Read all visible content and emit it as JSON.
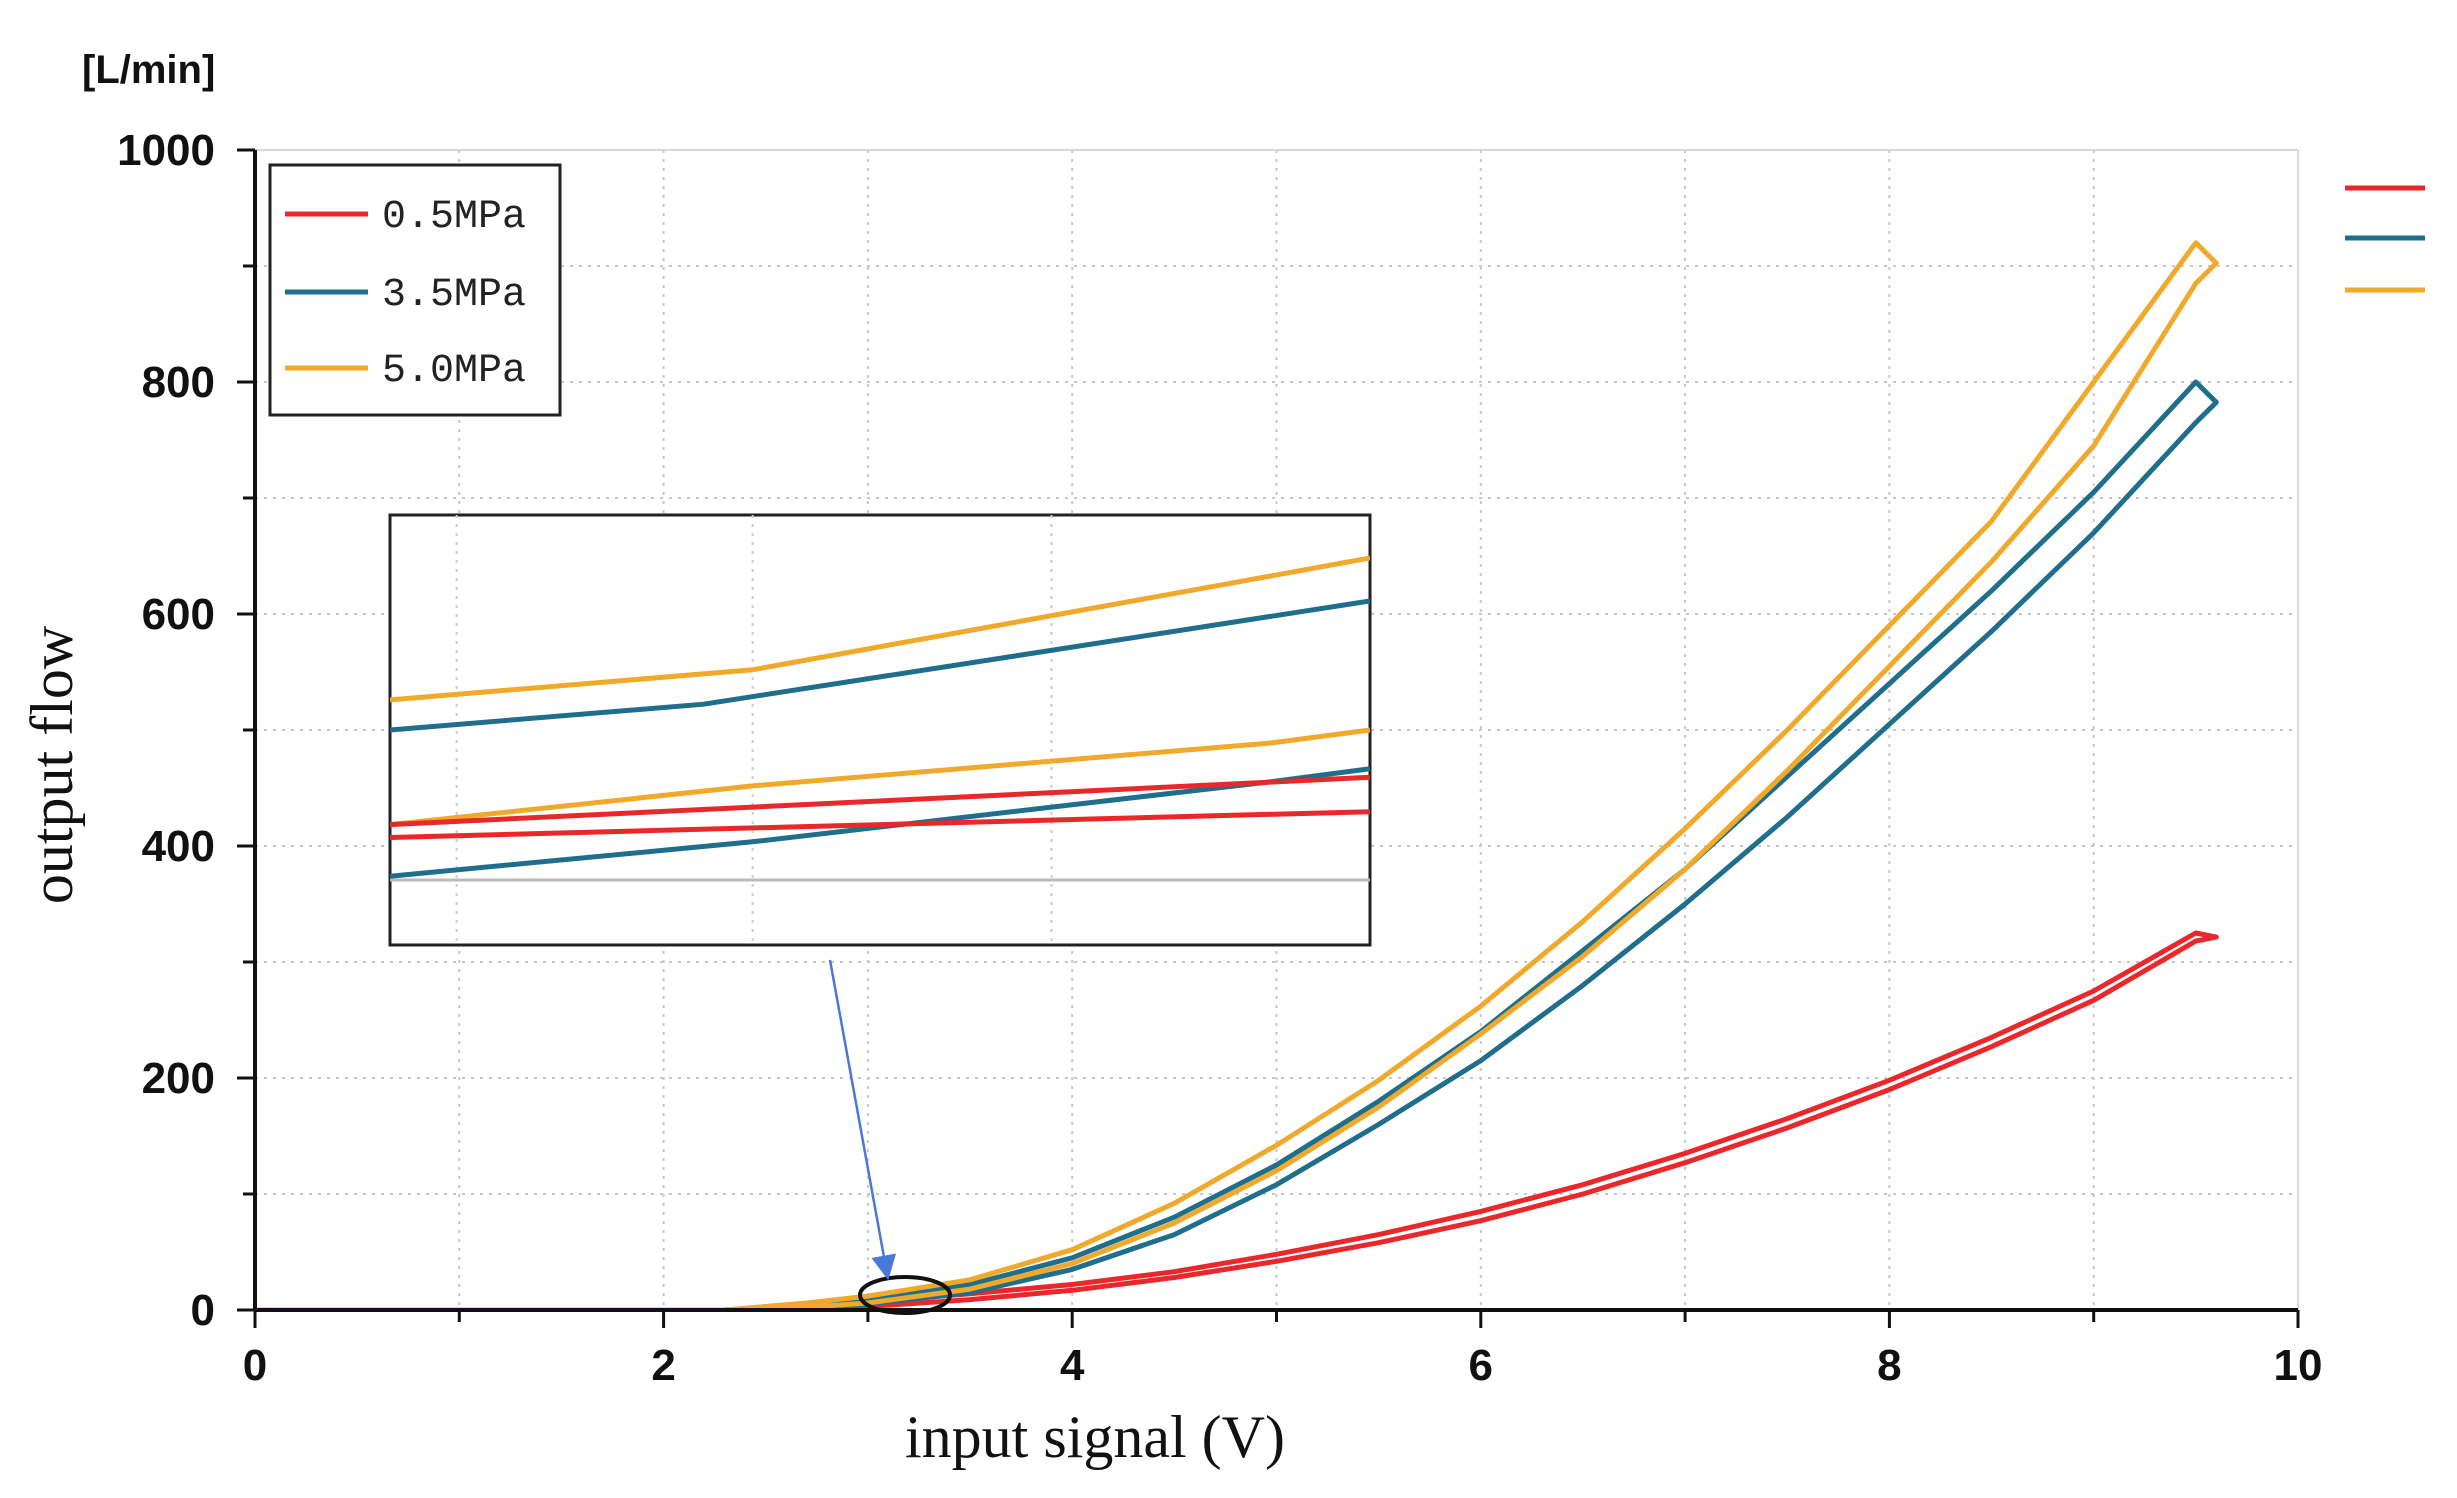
{
  "chart_data": {
    "type": "line",
    "title": "",
    "unit_label": "[L/min]",
    "xlabel": "input signal (V)",
    "ylabel": "output flow",
    "xlim": [
      0,
      10
    ],
    "ylim": [
      0,
      1000
    ],
    "xticks": [
      0,
      2,
      4,
      6,
      8,
      10
    ],
    "yticks": [
      0,
      200,
      400,
      600,
      800,
      1000
    ],
    "grid": true,
    "legend_position": "top-left",
    "series": [
      {
        "name": "0.5MPa",
        "color": "#e8282b",
        "upper": {
          "x": [
            0,
            2.3,
            2.7,
            3.0,
            3.5,
            4.0,
            4.5,
            5.0,
            5.5,
            6.0,
            6.5,
            7.0,
            7.5,
            8.0,
            8.5,
            9.0,
            9.5
          ],
          "y": [
            0,
            0,
            3,
            7,
            14,
            22,
            33,
            48,
            65,
            85,
            108,
            135,
            165,
            198,
            235,
            275,
            325
          ]
        },
        "lower": {
          "x": [
            0,
            2.5,
            3.0,
            3.5,
            4.0,
            4.5,
            5.0,
            5.5,
            6.0,
            6.5,
            7.0,
            7.5,
            8.0,
            8.5,
            9.0,
            9.5
          ],
          "y": [
            0,
            0,
            3,
            9,
            17,
            28,
            42,
            58,
            77,
            100,
            127,
            157,
            190,
            227,
            267,
            318
          ]
        }
      },
      {
        "name": "3.5MPa",
        "color": "#1f6e8c",
        "upper": {
          "x": [
            0,
            2.3,
            2.7,
            3.0,
            3.5,
            4.0,
            4.5,
            5.0,
            5.5,
            6.0,
            6.5,
            7.0,
            7.5,
            8.0,
            8.5,
            9.0,
            9.5
          ],
          "y": [
            0,
            0,
            5,
            10,
            22,
            45,
            80,
            125,
            180,
            240,
            310,
            380,
            460,
            540,
            620,
            705,
            800
          ]
        },
        "lower": {
          "x": [
            0,
            2.5,
            3.0,
            3.5,
            4.0,
            4.5,
            5.0,
            5.5,
            6.0,
            6.5,
            7.0,
            7.5,
            8.0,
            8.5,
            9.0,
            9.5
          ],
          "y": [
            0,
            0,
            5,
            15,
            35,
            65,
            108,
            160,
            215,
            280,
            350,
            425,
            505,
            585,
            670,
            765
          ]
        }
      },
      {
        "name": "5.0MPa",
        "color": "#f0a92a",
        "upper": {
          "x": [
            0,
            2.3,
            2.7,
            3.0,
            3.5,
            4.0,
            4.5,
            5.0,
            5.5,
            6.0,
            6.5,
            7.0,
            7.5,
            8.0,
            8.5,
            9.0,
            9.5
          ],
          "y": [
            0,
            0,
            6,
            12,
            26,
            52,
            92,
            142,
            198,
            262,
            335,
            415,
            500,
            590,
            680,
            800,
            920
          ]
        },
        "lower": {
          "x": [
            0,
            2.5,
            3.0,
            3.5,
            4.0,
            4.5,
            5.0,
            5.5,
            6.0,
            6.5,
            7.0,
            7.5,
            8.0,
            8.5,
            9.0,
            9.5
          ],
          "y": [
            0,
            0,
            6,
            18,
            40,
            75,
            120,
            175,
            238,
            305,
            380,
            465,
            555,
            645,
            745,
            885
          ]
        }
      }
    ],
    "inset": {
      "description": "zoomed view of highlighted region",
      "series": [
        {
          "name": "5.0MPa",
          "color": "#f0a92a",
          "upper": [
            [
              0,
              0.43
            ],
            [
              0.37,
              0.36
            ],
            [
              1,
              0.1
            ]
          ],
          "lower": [
            [
              0,
              0.72
            ],
            [
              0.37,
              0.63
            ],
            [
              0.9,
              0.53
            ],
            [
              1,
              0.5
            ]
          ]
        },
        {
          "name": "3.5MPa",
          "color": "#1f6e8c",
          "upper": [
            [
              0,
              0.5
            ],
            [
              0.32,
              0.44
            ],
            [
              1,
              0.2
            ]
          ],
          "lower": [
            [
              0,
              0.84
            ],
            [
              0.37,
              0.76
            ],
            [
              0.9,
              0.62
            ],
            [
              1,
              0.59
            ]
          ]
        },
        {
          "name": "0.5MPa",
          "color": "#e8282b",
          "upper": [
            [
              0,
              0.72
            ],
            [
              1,
              0.61
            ]
          ],
          "lower": [
            [
              0,
              0.75
            ],
            [
              1,
              0.69
            ]
          ]
        }
      ]
    }
  }
}
